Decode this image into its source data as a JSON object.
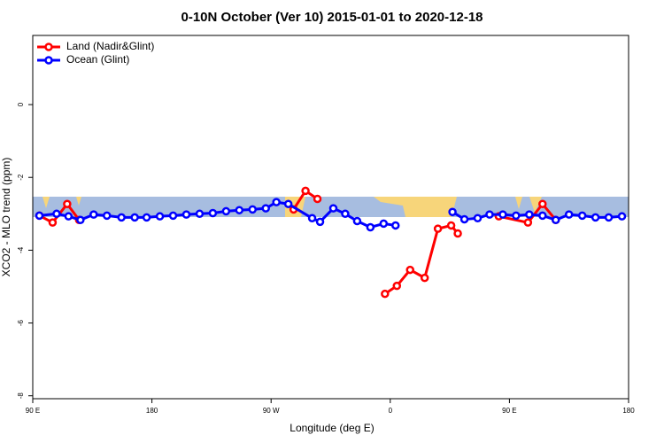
{
  "chart_data": {
    "type": "line",
    "title": "0-10N October (Ver 10)   2015-01-01 to 2020-12-18",
    "x_label": "Longitude (deg E)",
    "y_label": "XCO2 - MLO trend (ppm)",
    "xlim": [
      90,
      540
    ],
    "xticks": [
      {
        "value": 90,
        "label": "90 E"
      },
      180,
      {
        "value": 270,
        "label": "90 W"
      },
      {
        "value": 360,
        "label": "0"
      },
      {
        "value": 450,
        "label": "90 E"
      },
      {
        "value": 540,
        "label": "180"
      }
    ],
    "ylim": [
      -8.08,
      1.9
    ],
    "yticks": [
      0,
      -2,
      -4,
      -6,
      -8
    ],
    "legend": "top-left",
    "series": [
      {
        "name": "Land (Nadir&Glint)",
        "color": "#ff0000",
        "x": [
          95,
          105,
          116,
          125,
          null,
          287,
          296,
          305,
          null,
          356,
          365,
          375,
          386,
          396,
          406,
          411,
          null,
          442,
          464,
          475,
          485
        ],
        "values": [
          -3.05,
          -3.24,
          -2.73,
          -3.17,
          null,
          -2.88,
          -2.37,
          -2.59,
          null,
          -5.2,
          -4.98,
          -4.54,
          -4.76,
          -3.41,
          -3.32,
          -3.54,
          null,
          -3.07,
          -3.24,
          -2.73,
          -3.17
        ]
      },
      {
        "name": "Ocean (Glint)",
        "color": "#0000ff",
        "x": [
          95,
          108,
          117,
          126,
          136,
          146,
          157,
          167,
          176,
          186,
          196,
          206,
          216,
          226,
          236,
          246,
          256,
          266,
          274,
          283,
          301,
          307,
          317,
          326,
          335,
          345,
          355,
          364,
          null,
          407,
          416,
          426,
          435,
          445,
          455,
          465,
          475,
          485,
          495,
          505,
          515,
          525,
          535
        ],
        "values": [
          -3.05,
          -3.0,
          -3.07,
          -3.17,
          -3.02,
          -3.05,
          -3.1,
          -3.1,
          -3.1,
          -3.07,
          -3.05,
          -3.02,
          -3.0,
          -2.98,
          -2.93,
          -2.9,
          -2.88,
          -2.85,
          -2.68,
          -2.73,
          -3.12,
          -3.22,
          -2.85,
          -3.0,
          -3.2,
          -3.37,
          -3.27,
          -3.32,
          null,
          -2.95,
          -3.15,
          -3.12,
          -3.02,
          -3.02,
          -3.05,
          -3.02,
          -3.05,
          -3.17,
          -3.02,
          -3.05,
          -3.1,
          -3.1,
          -3.07
        ]
      }
    ]
  }
}
